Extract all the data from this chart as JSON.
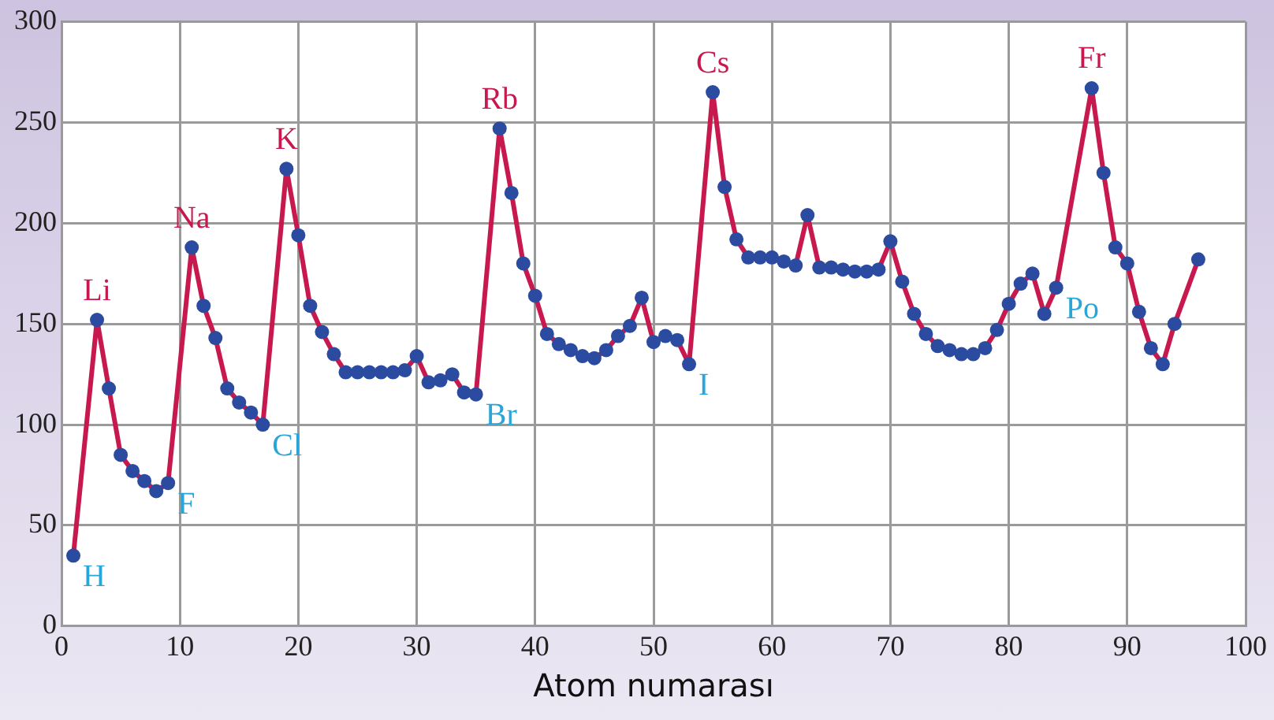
{
  "chart_data": {
    "type": "line",
    "xlabel": "Atom numarası",
    "xlim": [
      0,
      100
    ],
    "xticks": [
      0,
      10,
      20,
      30,
      40,
      50,
      60,
      70,
      80,
      90,
      100
    ],
    "ylim": [
      0,
      300
    ],
    "yticks": [
      0,
      50,
      100,
      150,
      200,
      250,
      300
    ],
    "grid": true,
    "marker": "circle",
    "line_style": "solid",
    "series": [
      {
        "color": "#c8194f",
        "x": [
          1,
          3,
          4,
          5,
          6,
          7,
          8,
          9,
          11,
          12,
          13,
          14,
          15,
          16,
          17,
          19,
          20,
          21,
          22,
          23,
          24,
          25,
          26,
          27,
          28,
          29,
          30,
          31,
          32,
          33,
          34,
          35,
          37,
          38,
          39,
          40,
          41,
          42,
          43,
          44,
          45,
          46,
          47,
          48,
          49,
          50,
          51,
          52,
          53,
          55,
          56,
          57,
          58,
          59,
          60,
          61,
          62,
          63,
          64,
          65,
          66,
          67,
          68,
          69,
          70,
          71,
          72,
          73,
          74,
          75,
          76,
          77,
          78,
          79,
          80,
          81,
          82,
          83,
          84,
          87,
          88,
          89,
          90,
          91,
          92,
          93,
          94,
          96
        ],
        "values": [
          35,
          152,
          118,
          85,
          77,
          72,
          67,
          71,
          188,
          159,
          143,
          118,
          111,
          106,
          100,
          227,
          194,
          159,
          146,
          135,
          126,
          126,
          126,
          126,
          126,
          127,
          134,
          121,
          122,
          125,
          116,
          115,
          247,
          215,
          180,
          164,
          145,
          140,
          137,
          134,
          133,
          137,
          144,
          149,
          163,
          141,
          144,
          142,
          130,
          265,
          218,
          192,
          183,
          183,
          183,
          181,
          179,
          204,
          178,
          178,
          177,
          176,
          176,
          177,
          191,
          171,
          155,
          145,
          139,
          137,
          135,
          135,
          138,
          147,
          160,
          170,
          175,
          155,
          168,
          267,
          225,
          188,
          180,
          156,
          138,
          130,
          150,
          182
        ]
      }
    ],
    "annotations": [
      {
        "text": "H",
        "x": 1,
        "y": 35
      },
      {
        "text": "Li",
        "x": 3,
        "y": 152
      },
      {
        "text": "F",
        "x": 9,
        "y": 71
      },
      {
        "text": "Na",
        "x": 11,
        "y": 188
      },
      {
        "text": "Cl",
        "x": 17,
        "y": 100
      },
      {
        "text": "K",
        "x": 19,
        "y": 227
      },
      {
        "text": "Br",
        "x": 35,
        "y": 115
      },
      {
        "text": "Rb",
        "x": 37,
        "y": 247
      },
      {
        "text": "I",
        "x": 53,
        "y": 130
      },
      {
        "text": "Cs",
        "x": 55,
        "y": 265
      },
      {
        "text": "Po",
        "x": 84,
        "y": 168
      },
      {
        "text": "Fr",
        "x": 87,
        "y": 267
      }
    ]
  }
}
